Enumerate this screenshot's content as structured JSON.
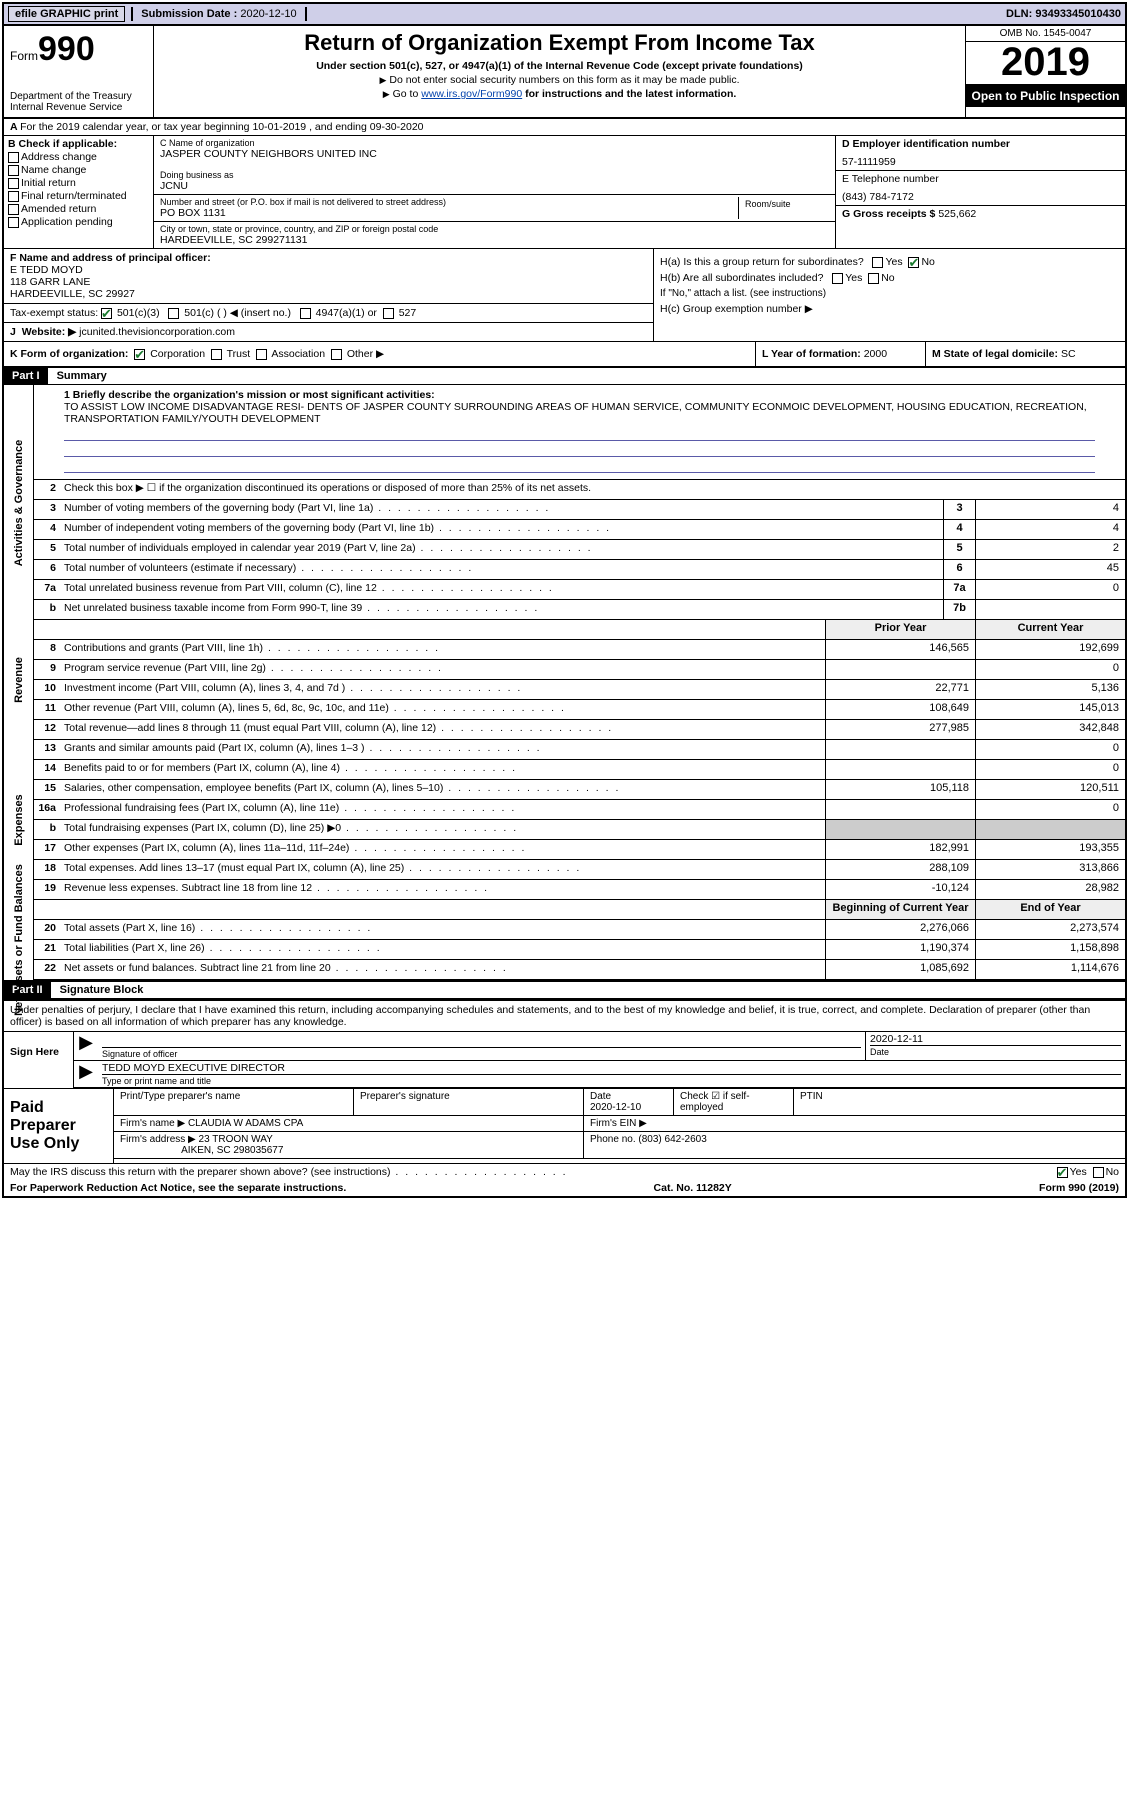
{
  "topbar": {
    "efile": "efile GRAPHIC print",
    "subdate_label": "Submission Date :",
    "subdate": "2020-12-10",
    "dln": "DLN: 93493345010430"
  },
  "header": {
    "form_word": "Form",
    "form_num": "990",
    "dept1": "Department of the Treasury",
    "dept2": "Internal Revenue Service",
    "title": "Return of Organization Exempt From Income Tax",
    "sub1": "Under section 501(c), 527, or 4947(a)(1) of the Internal Revenue Code (except private foundations)",
    "sub2": "Do not enter social security numbers on this form as it may be made public.",
    "sub3_pre": "Go to ",
    "sub3_link": "www.irs.gov/Form990",
    "sub3_post": " for instructions and the latest information.",
    "omb": "OMB No. 1545-0047",
    "year": "2019",
    "badge": "Open to Public Inspection"
  },
  "rowA": "For the 2019 calendar year, or tax year beginning 10-01-2019   , and ending 09-30-2020",
  "colB": {
    "hdr": "B Check if applicable:",
    "addr": "Address change",
    "name": "Name change",
    "init": "Initial return",
    "final": "Final return/terminated",
    "amend": "Amended return",
    "app": "Application pending"
  },
  "colC": {
    "name_lbl": "C Name of organization",
    "name": "JASPER COUNTY NEIGHBORS UNITED INC",
    "dba_lbl": "Doing business as",
    "dba": "JCNU",
    "street_lbl": "Number and street (or P.O. box if mail is not delivered to street address)",
    "room_lbl": "Room/suite",
    "street": "PO BOX 1131",
    "city_lbl": "City or town, state or province, country, and ZIP or foreign postal code",
    "city": "HARDEEVILLE, SC  299271131"
  },
  "colD": {
    "d_lbl": "D Employer identification number",
    "d_val": "57-1111959",
    "e_lbl": "E Telephone number",
    "e_val": "(843) 784-7172",
    "g_lbl": "G Gross receipts $",
    "g_val": "525,662"
  },
  "blockF": {
    "f_lbl": "F  Name and address of principal officer:",
    "f_name": "E TEDD MOYD",
    "f_addr1": "118 GARR LANE",
    "f_addr2": "HARDEEVILLE, SC  29927",
    "tax_lbl": "Tax-exempt status:",
    "s501c3": "501(c)(3)",
    "s501c": "501(c) (  ) ◀ (insert no.)",
    "s4947": "4947(a)(1) or",
    "s527": "527",
    "web_lbl": "Website: ▶",
    "web": "jcunited.thevisioncorporation.com"
  },
  "blockH": {
    "ha": "H(a)  Is this a group return for subordinates?",
    "hb": "H(b)  Are all subordinates included?",
    "hb_note": "If \"No,\" attach a list. (see instructions)",
    "hc": "H(c)  Group exemption number ▶",
    "yes": "Yes",
    "no": "No"
  },
  "rowK": {
    "k": "K Form of organization:",
    "corp": "Corporation",
    "trust": "Trust",
    "assoc": "Association",
    "other": "Other ▶",
    "l_lbl": "L Year of formation:",
    "l_val": "2000",
    "m_lbl": "M State of legal domicile:",
    "m_val": "SC"
  },
  "part1": {
    "hdr": "Part I",
    "title": "Summary",
    "l1_label": "1  Briefly describe the organization's mission or most significant activities:",
    "l1_text": "TO ASSIST LOW INCOME DISADVANTAGE RESI- DENTS OF JASPER COUNTY SURROUNDING AREAS OF HUMAN SERVICE, COMMUNITY ECONMOIC DEVELOPMENT, HOUSING EDUCATION, RECREATION, TRANSPORTATION FAMILY/YOUTH DEVELOPMENT",
    "l2": "Check this box ▶ ☐  if the organization discontinued its operations or disposed of more than 25% of its net assets.",
    "sections": {
      "gov": "Activities & Governance",
      "rev": "Revenue",
      "exp": "Expenses",
      "net": "Net Assets or Fund Balances"
    },
    "prior_hdr": "Prior Year",
    "curr_hdr": "Current Year",
    "boy_hdr": "Beginning of Current Year",
    "eoy_hdr": "End of Year",
    "rows_gov": [
      {
        "n": "3",
        "d": "Number of voting members of the governing body (Part VI, line 1a)",
        "b": "3",
        "v": "4"
      },
      {
        "n": "4",
        "d": "Number of independent voting members of the governing body (Part VI, line 1b)",
        "b": "4",
        "v": "4"
      },
      {
        "n": "5",
        "d": "Total number of individuals employed in calendar year 2019 (Part V, line 2a)",
        "b": "5",
        "v": "2"
      },
      {
        "n": "6",
        "d": "Total number of volunteers (estimate if necessary)",
        "b": "6",
        "v": "45"
      },
      {
        "n": "7a",
        "d": "Total unrelated business revenue from Part VIII, column (C), line 12",
        "b": "7a",
        "v": "0"
      },
      {
        "n": "b",
        "d": "Net unrelated business taxable income from Form 990-T, line 39",
        "b": "7b",
        "v": ""
      }
    ],
    "rows_rev": [
      {
        "n": "8",
        "d": "Contributions and grants (Part VIII, line 1h)",
        "p": "146,565",
        "c": "192,699"
      },
      {
        "n": "9",
        "d": "Program service revenue (Part VIII, line 2g)",
        "p": "",
        "c": "0"
      },
      {
        "n": "10",
        "d": "Investment income (Part VIII, column (A), lines 3, 4, and 7d )",
        "p": "22,771",
        "c": "5,136"
      },
      {
        "n": "11",
        "d": "Other revenue (Part VIII, column (A), lines 5, 6d, 8c, 9c, 10c, and 11e)",
        "p": "108,649",
        "c": "145,013"
      },
      {
        "n": "12",
        "d": "Total revenue—add lines 8 through 11 (must equal Part VIII, column (A), line 12)",
        "p": "277,985",
        "c": "342,848"
      }
    ],
    "rows_exp": [
      {
        "n": "13",
        "d": "Grants and similar amounts paid (Part IX, column (A), lines 1–3 )",
        "p": "",
        "c": "0"
      },
      {
        "n": "14",
        "d": "Benefits paid to or for members (Part IX, column (A), line 4)",
        "p": "",
        "c": "0"
      },
      {
        "n": "15",
        "d": "Salaries, other compensation, employee benefits (Part IX, column (A), lines 5–10)",
        "p": "105,118",
        "c": "120,511"
      },
      {
        "n": "16a",
        "d": "Professional fundraising fees (Part IX, column (A), line 11e)",
        "p": "",
        "c": "0"
      },
      {
        "n": "b",
        "d": "Total fundraising expenses (Part IX, column (D), line 25) ▶0",
        "p": "shade",
        "c": "shade"
      },
      {
        "n": "17",
        "d": "Other expenses (Part IX, column (A), lines 11a–11d, 11f–24e)",
        "p": "182,991",
        "c": "193,355"
      },
      {
        "n": "18",
        "d": "Total expenses. Add lines 13–17 (must equal Part IX, column (A), line 25)",
        "p": "288,109",
        "c": "313,866"
      },
      {
        "n": "19",
        "d": "Revenue less expenses. Subtract line 18 from line 12",
        "p": "-10,124",
        "c": "28,982"
      }
    ],
    "rows_net": [
      {
        "n": "20",
        "d": "Total assets (Part X, line 16)",
        "p": "2,276,066",
        "c": "2,273,574"
      },
      {
        "n": "21",
        "d": "Total liabilities (Part X, line 26)",
        "p": "1,190,374",
        "c": "1,158,898"
      },
      {
        "n": "22",
        "d": "Net assets or fund balances. Subtract line 21 from line 20",
        "p": "1,085,692",
        "c": "1,114,676"
      }
    ]
  },
  "part2": {
    "hdr": "Part II",
    "title": "Signature Block",
    "decl": "Under penalties of perjury, I declare that I have examined this return, including accompanying schedules and statements, and to the best of my knowledge and belief, it is true, correct, and complete. Declaration of preparer (other than officer) is based on all information of which preparer has any knowledge.",
    "sign_here": "Sign Here",
    "sig_officer": "Signature of officer",
    "date_lbl": "Date",
    "sig_date": "2020-12-11",
    "officer": "TEDD MOYD  EXECUTIVE DIRECTOR",
    "officer_lbl": "Type or print name and title",
    "paid": "Paid Preparer Use Only",
    "pp_name_lbl": "Print/Type preparer's name",
    "pp_sig_lbl": "Preparer's signature",
    "pp_date_lbl": "Date",
    "pp_date": "2020-12-10",
    "pp_check_lbl": "Check ☑ if self-employed",
    "ptin_lbl": "PTIN",
    "firm_name_lbl": "Firm's name   ▶",
    "firm_name": "CLAUDIA W ADAMS CPA",
    "firm_ein_lbl": "Firm's EIN ▶",
    "firm_addr_lbl": "Firm's address ▶",
    "firm_addr1": "23 TROON WAY",
    "firm_addr2": "AIKEN, SC  298035677",
    "phone_lbl": "Phone no.",
    "phone": "(803) 642-2603",
    "discuss": "May the IRS discuss this return with the preparer shown above? (see instructions)",
    "paper": "For Paperwork Reduction Act Notice, see the separate instructions.",
    "cat": "Cat. No. 11282Y",
    "form_foot": "Form 990 (2019)"
  }
}
